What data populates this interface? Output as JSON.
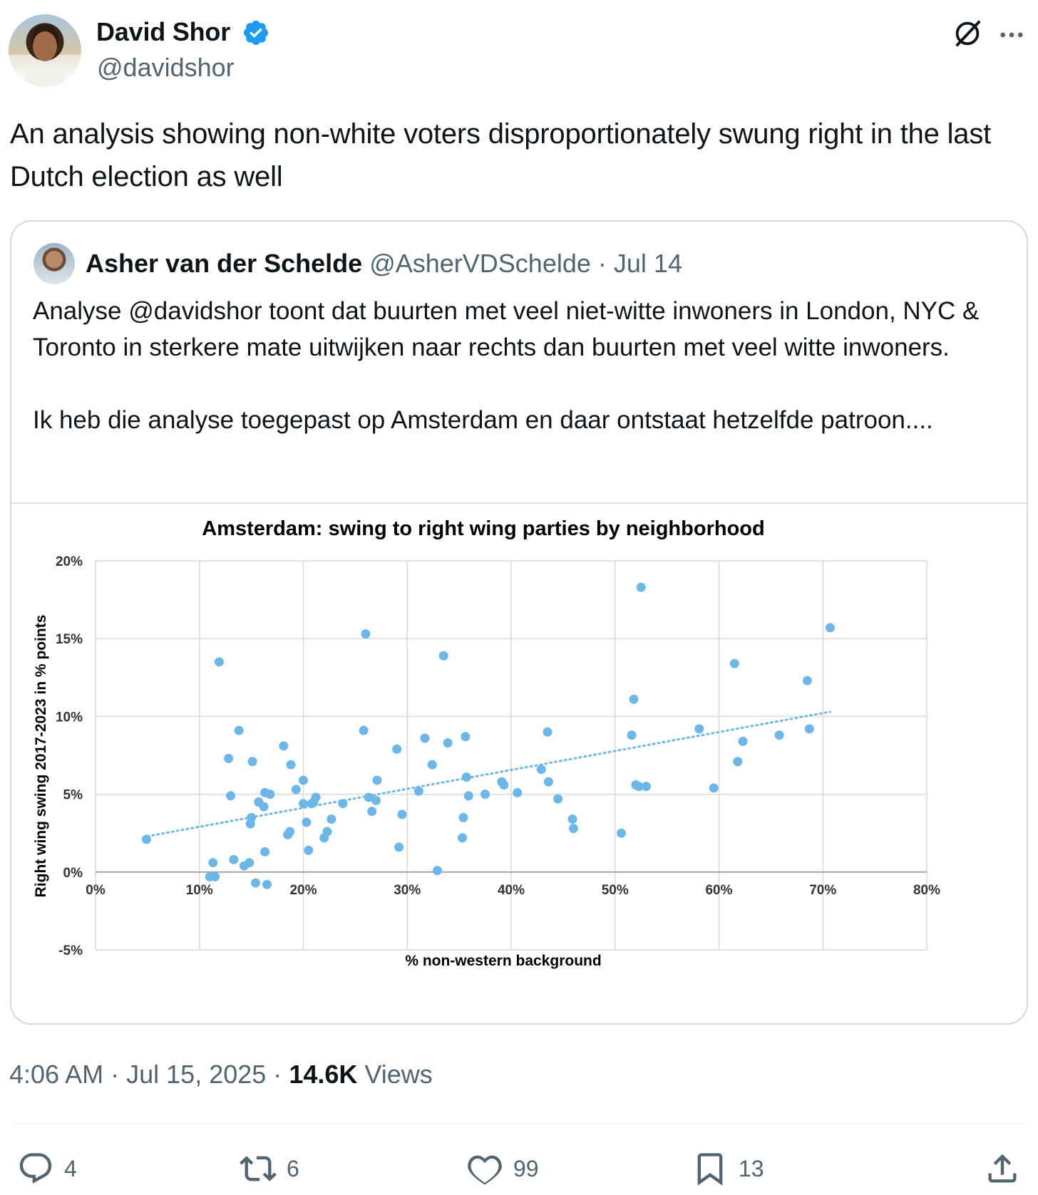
{
  "tweet": {
    "author": {
      "name": "David Shor",
      "handle": "@davidshor",
      "verified": true
    },
    "text": "An analysis showing non-white voters disproportionately swung right in the last Dutch election as well",
    "time": "4:06 AM",
    "date": "Jul 15, 2025",
    "views_count": "14.6K",
    "views_label": "Views",
    "actions": {
      "replies": "4",
      "retweets": "6",
      "likes": "99",
      "bookmarks": "13"
    }
  },
  "quote": {
    "author": {
      "name": "Asher van der Schelde",
      "handle": "@AsherVDSchelde",
      "date": "· Jul 14"
    },
    "text1": "Analyse @davidshor toont dat buurten met veel niet-witte inwoners in London, NYC & Toronto in sterkere mate uitwijken naar rechts dan buurten met veel witte inwoners.",
    "text2": "Ik heb die analyse toegepast op Amsterdam en daar ontstaat hetzelfde patroon...."
  },
  "icons": [
    "verified-badge-icon",
    "grok-icon",
    "more-icon",
    "reply-icon",
    "retweet-icon",
    "like-icon",
    "bookmark-icon",
    "share-icon"
  ],
  "colors": {
    "accent": "#1d9bf0",
    "muted": "#536471",
    "text": "#0f1419",
    "point": "#6cb6e8"
  },
  "chart_data": {
    "type": "scatter",
    "title": "Amsterdam: swing to right wing parties by neighborhood",
    "xlabel": "% non-western background",
    "ylabel": "Right wing swing 2017-2023 in % points",
    "xlim": [
      0,
      80
    ],
    "ylim": [
      -5,
      20
    ],
    "xticks": [
      0,
      10,
      20,
      30,
      40,
      50,
      60,
      70,
      80
    ],
    "yticks": [
      -5,
      0,
      5,
      10,
      15,
      20
    ],
    "xtick_labels": [
      "0%",
      "10%",
      "20%",
      "30%",
      "40%",
      "50%",
      "60%",
      "70%",
      "80%"
    ],
    "ytick_labels": [
      "-5%",
      "0%",
      "5%",
      "10%",
      "15%",
      "20%"
    ],
    "grid": true,
    "trendline": {
      "style": "dotted",
      "x": [
        5,
        70.7
      ],
      "y": [
        2.3,
        10.3
      ]
    },
    "points": [
      [
        4.9,
        2.1
      ],
      [
        11,
        -0.3
      ],
      [
        11.5,
        -0.3
      ],
      [
        11.3,
        0.6
      ],
      [
        11.9,
        13.5
      ],
      [
        12.8,
        7.3
      ],
      [
        13,
        4.9
      ],
      [
        13.3,
        0.8
      ],
      [
        13.8,
        9.1
      ],
      [
        14.3,
        0.4
      ],
      [
        14.8,
        0.6
      ],
      [
        14.9,
        3.1
      ],
      [
        15,
        3.5
      ],
      [
        15.1,
        7.1
      ],
      [
        15.4,
        -0.7
      ],
      [
        15.7,
        4.5
      ],
      [
        16.2,
        4.2
      ],
      [
        16.3,
        5.1
      ],
      [
        16.3,
        1.3
      ],
      [
        16.5,
        -0.8
      ],
      [
        16.8,
        5.0
      ],
      [
        18.1,
        8.1
      ],
      [
        18.5,
        2.4
      ],
      [
        18.7,
        2.6
      ],
      [
        18.8,
        6.9
      ],
      [
        19.3,
        5.3
      ],
      [
        20,
        4.4
      ],
      [
        20,
        5.9
      ],
      [
        20.3,
        3.2
      ],
      [
        20.5,
        1.4
      ],
      [
        20.8,
        4.4
      ],
      [
        21,
        4.5
      ],
      [
        21.2,
        4.8
      ],
      [
        22,
        2.2
      ],
      [
        22.3,
        2.6
      ],
      [
        22.7,
        3.4
      ],
      [
        23.8,
        4.4
      ],
      [
        25.8,
        9.1
      ],
      [
        26,
        15.3
      ],
      [
        26.3,
        4.8
      ],
      [
        26.6,
        3.9
      ],
      [
        27,
        4.6
      ],
      [
        27.1,
        5.9
      ],
      [
        29,
        7.9
      ],
      [
        29.2,
        1.6
      ],
      [
        29.5,
        3.7
      ],
      [
        31.1,
        5.2
      ],
      [
        31.7,
        8.6
      ],
      [
        32.4,
        6.9
      ],
      [
        32.9,
        0.1
      ],
      [
        33.5,
        13.9
      ],
      [
        33.9,
        8.3
      ],
      [
        35.3,
        2.2
      ],
      [
        35.4,
        3.5
      ],
      [
        35.6,
        8.7
      ],
      [
        35.7,
        6.1
      ],
      [
        35.9,
        4.9
      ],
      [
        37.5,
        5.0
      ],
      [
        39.1,
        5.8
      ],
      [
        39.3,
        5.6
      ],
      [
        40.6,
        5.1
      ],
      [
        42.9,
        6.6
      ],
      [
        43.5,
        9.0
      ],
      [
        43.6,
        5.8
      ],
      [
        44.5,
        4.7
      ],
      [
        45.9,
        3.4
      ],
      [
        46,
        2.8
      ],
      [
        50.6,
        2.5
      ],
      [
        51.6,
        8.8
      ],
      [
        51.8,
        11.1
      ],
      [
        52,
        5.6
      ],
      [
        52.3,
        5.5
      ],
      [
        52.5,
        18.3
      ],
      [
        53,
        5.5
      ],
      [
        58.1,
        9.2
      ],
      [
        59.5,
        5.4
      ],
      [
        61.5,
        13.4
      ],
      [
        61.8,
        7.1
      ],
      [
        62.3,
        8.4
      ],
      [
        65.8,
        8.8
      ],
      [
        68.5,
        12.3
      ],
      [
        68.7,
        9.2
      ],
      [
        70.7,
        15.7
      ]
    ]
  }
}
